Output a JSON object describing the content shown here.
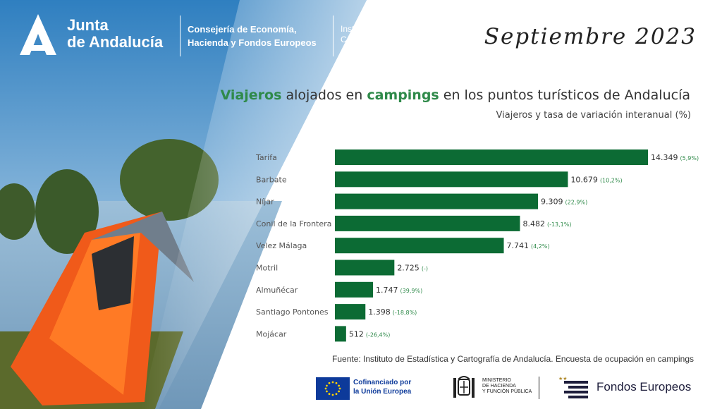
{
  "header": {
    "brand_line1": "Junta",
    "brand_line2": "de Andalucía",
    "consejeria_line1": "Consejería de Economía,",
    "consejeria_line2": "Hacienda y Fondos Europeos",
    "instituto_line1": "Instituto de Estadística y",
    "instituto_line2": "Cartografía de Andalucía",
    "month": "Septiembre 2023"
  },
  "title": {
    "word1": "Viajeros",
    "part2": " alojados en ",
    "word3": "campings",
    "part4": " en los puntos turísticos de Andalucía"
  },
  "subtitle": "Viajeros y tasa de variación interanual (%)",
  "chart_data": {
    "type": "bar",
    "orientation": "horizontal",
    "bar_color": "#0c6b34",
    "categories": [
      "Tarifa",
      "Barbate",
      "Níjar",
      "Conil de la Frontera",
      "Velez Málaga",
      "Motril",
      "Almuñécar",
      "Santiago Pontones",
      "Mojácar"
    ],
    "values": [
      14349,
      10679,
      9309,
      8482,
      7741,
      2725,
      1747,
      1398,
      512
    ],
    "value_labels": [
      "14.349",
      "10.679",
      "9.309",
      "8.482",
      "7.741",
      "2.725",
      "1.747",
      "1.398",
      "512"
    ],
    "variation_labels": [
      "(5,9%)",
      "(10,2%)",
      "(22,9%)",
      "(-13,1%)",
      "(4,2%)",
      "(-)",
      "(39,9%)",
      "(-18,8%)",
      "(-26,4%)"
    ]
  },
  "source": "Fuente: Instituto de Estadística y Cartografía de Andalucía. Encuesta de ocupación en campings",
  "footer": {
    "eu_line1": "Cofinanciado por",
    "eu_line2": "la Unión Europea",
    "ministry_line1": "MINISTERIO",
    "ministry_line2": "DE HACIENDA",
    "ministry_line3": "Y FUNCIÓN PÚBLICA",
    "fondos": "Fondos Europeos"
  },
  "colors": {
    "bar": "#0c6b34",
    "title_highlight": "#2f8a4a",
    "sky": "#4e93c8",
    "water": "#8ab4d4"
  }
}
